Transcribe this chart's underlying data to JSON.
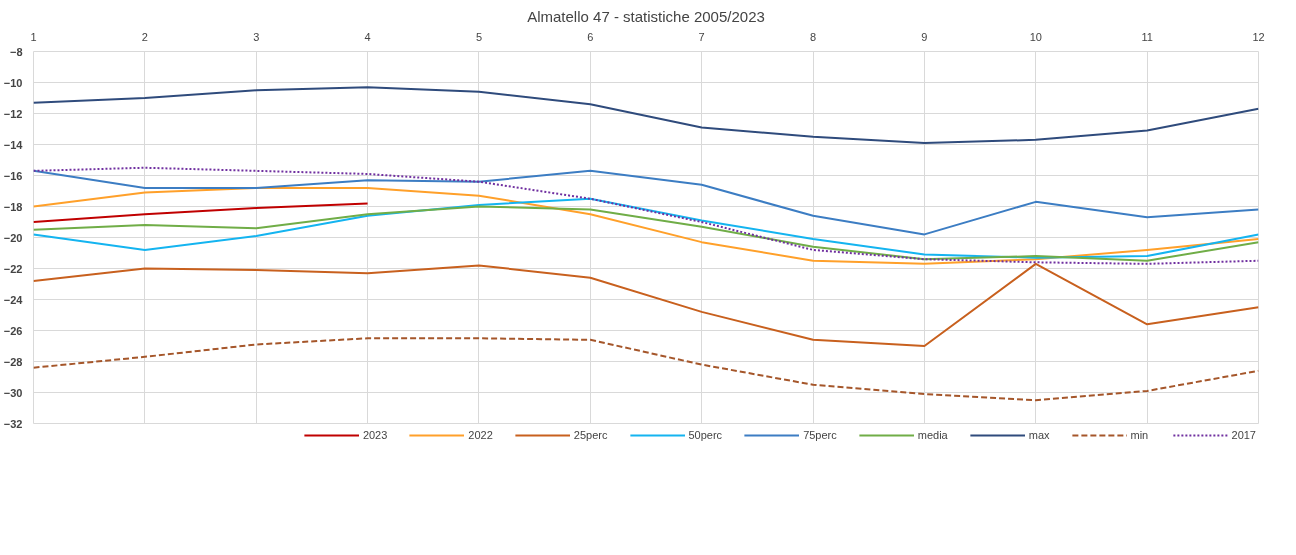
{
  "chart_data": {
    "type": "line",
    "title": "Almatello 47 - statistiche 2005/2023",
    "x": [
      1,
      2,
      3,
      4,
      5,
      6,
      7,
      8,
      9,
      10,
      11,
      12
    ],
    "xlim": [
      1,
      12
    ],
    "xticks": [
      1,
      2,
      3,
      4,
      5,
      6,
      7,
      8,
      9,
      10,
      11,
      12
    ],
    "ylim": [
      -32,
      -8
    ],
    "yticks": [
      -32,
      -30,
      -28,
      -26,
      -24,
      -22,
      -20,
      -18,
      -16,
      -14,
      -12,
      -10,
      -8
    ],
    "grid": true,
    "legend": "bottom",
    "marker": "none",
    "series": [
      {
        "name": "2023",
        "color": "#c00000",
        "line_style": "solid",
        "values": [
          -19.0,
          -18.5,
          -18.1,
          -17.8,
          null,
          null,
          null,
          null,
          null,
          null,
          null,
          null
        ]
      },
      {
        "name": "2022",
        "color": "#ffa02a",
        "line_style": "solid",
        "values": [
          -18.0,
          -17.1,
          -16.8,
          -16.8,
          -17.3,
          -18.5,
          -20.3,
          -21.5,
          -21.7,
          -21.4,
          -20.8,
          -20.1
        ]
      },
      {
        "name": "25perc",
        "color": "#c8601e",
        "line_style": "solid",
        "values": [
          -22.8,
          -22.0,
          -22.1,
          -22.3,
          -21.8,
          -22.6,
          -24.8,
          -26.6,
          -27.0,
          -21.7,
          -25.6,
          -24.5
        ]
      },
      {
        "name": "50perc",
        "color": "#14b4f0",
        "line_style": "solid",
        "values": [
          -19.8,
          -20.8,
          -19.9,
          -18.6,
          -17.9,
          -17.5,
          -18.9,
          -20.1,
          -21.1,
          -21.3,
          -21.2,
          -19.8
        ]
      },
      {
        "name": "75perc",
        "color": "#3c7dc3",
        "line_style": "solid",
        "values": [
          -15.7,
          -16.8,
          -16.8,
          -16.3,
          -16.4,
          -15.7,
          -16.6,
          -18.6,
          -19.8,
          -17.7,
          -18.7,
          -18.2
        ]
      },
      {
        "name": "media",
        "color": "#70ad47",
        "line_style": "solid",
        "values": [
          -19.5,
          -19.2,
          -19.4,
          -18.5,
          -18.0,
          -18.2,
          -19.3,
          -20.6,
          -21.4,
          -21.2,
          -21.5,
          -20.3
        ]
      },
      {
        "name": "max",
        "color": "#2f4b7c",
        "line_style": "solid",
        "values": [
          -11.3,
          -11.0,
          -10.5,
          -10.3,
          -10.6,
          -11.4,
          -12.9,
          -13.5,
          -13.9,
          -13.7,
          -13.1,
          -11.7
        ]
      },
      {
        "name": "min",
        "color": "#a5562a",
        "line_style": "dashed",
        "values": [
          -28.4,
          -27.7,
          -26.9,
          -26.5,
          -26.5,
          -26.6,
          -28.2,
          -29.5,
          -30.1,
          -30.5,
          -29.9,
          -28.6
        ]
      },
      {
        "name": "2017",
        "color": "#7030a0",
        "line_style": "dotted",
        "values": [
          -15.7,
          -15.5,
          -15.7,
          -15.9,
          -16.4,
          -17.5,
          -19.0,
          -20.8,
          -21.4,
          -21.6,
          -21.7,
          -21.5
        ]
      }
    ]
  }
}
